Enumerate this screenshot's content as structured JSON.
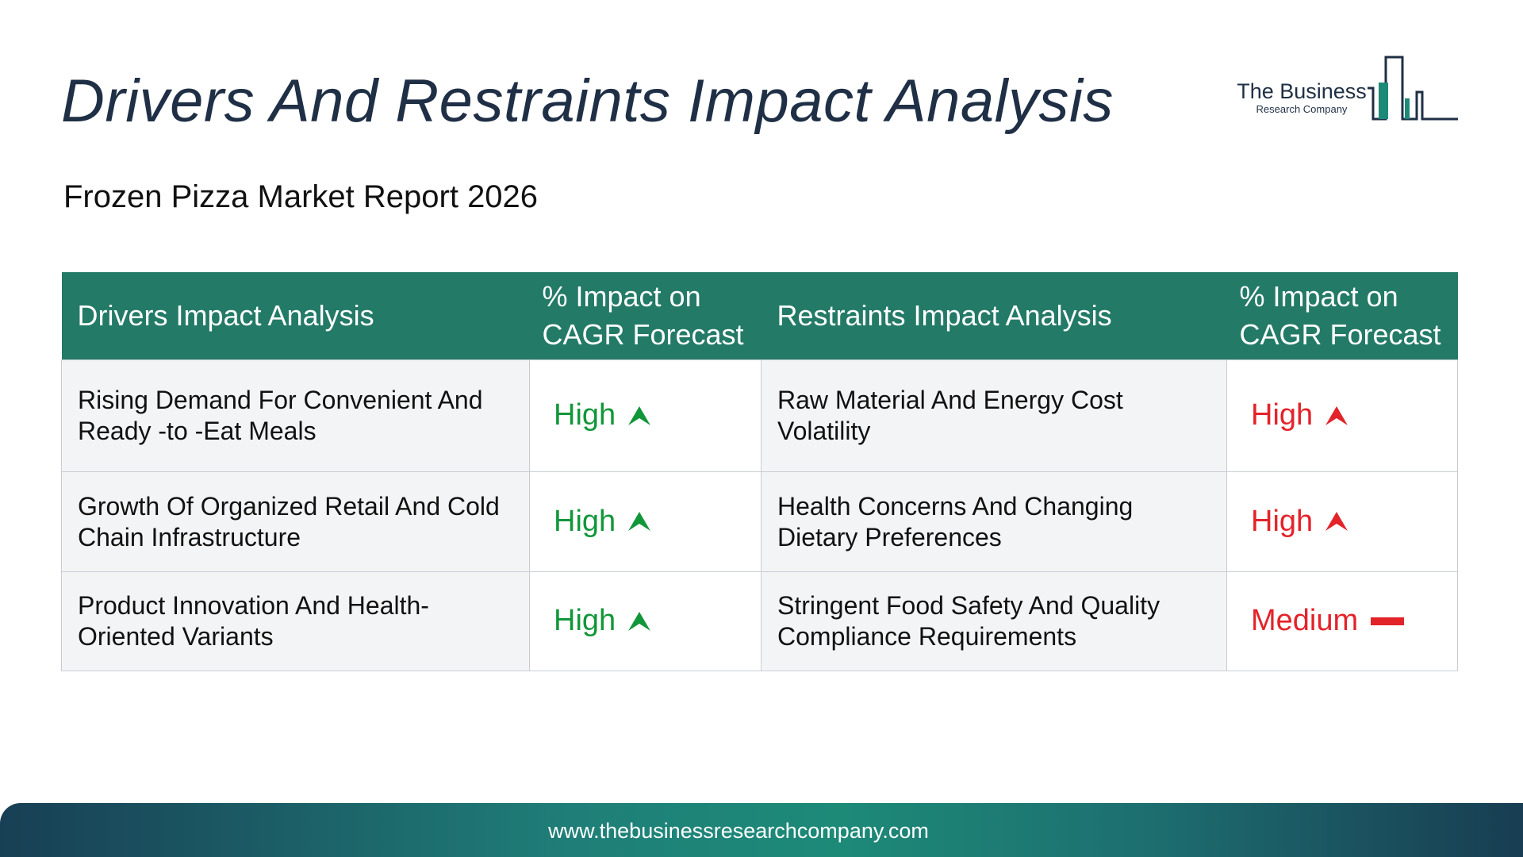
{
  "header": {
    "title": "Drivers And Restraints Impact Analysis",
    "subtitle": "Frozen Pizza Market Report 2026"
  },
  "logo": {
    "line1": "The Business",
    "line2": "Research Company",
    "icon": "building-bars-icon",
    "colors": {
      "navy": "#1f2f45",
      "teal": "#1d8a78"
    }
  },
  "table": {
    "headers": {
      "drivers": "Drivers Impact Analysis",
      "drivers_impact": "% Impact on CAGR Forecast",
      "restraints": "Restraints Impact Analysis",
      "restraints_impact": "% Impact on CAGR Forecast"
    },
    "rows": [
      {
        "driver": "Rising Demand For Convenient And Ready -to -Eat Meals",
        "driver_impact": "High",
        "driver_icon": "arrow-up-icon",
        "restraint": "Raw Material And Energy Cost Volatility",
        "restraint_impact": "High",
        "restraint_icon": "arrow-up-icon"
      },
      {
        "driver": "Growth Of Organized Retail And Cold Chain Infrastructure",
        "driver_impact": "High",
        "driver_icon": "arrow-up-icon",
        "restraint": "Health Concerns And Changing Dietary Preferences",
        "restraint_impact": "High",
        "restraint_icon": "arrow-up-icon"
      },
      {
        "driver": "Product Innovation And Health-Oriented Variants",
        "driver_impact": "High",
        "driver_icon": "arrow-up-icon",
        "restraint": "Stringent Food Safety And Quality Compliance Requirements",
        "restraint_impact": "Medium",
        "restraint_icon": "dash-icon"
      }
    ],
    "colors": {
      "header_bg": "#237a67",
      "driver_impact": "#12963a",
      "restraint_impact": "#e3232a"
    }
  },
  "footer": {
    "url": "www.thebusinessresearchcompany.com"
  }
}
